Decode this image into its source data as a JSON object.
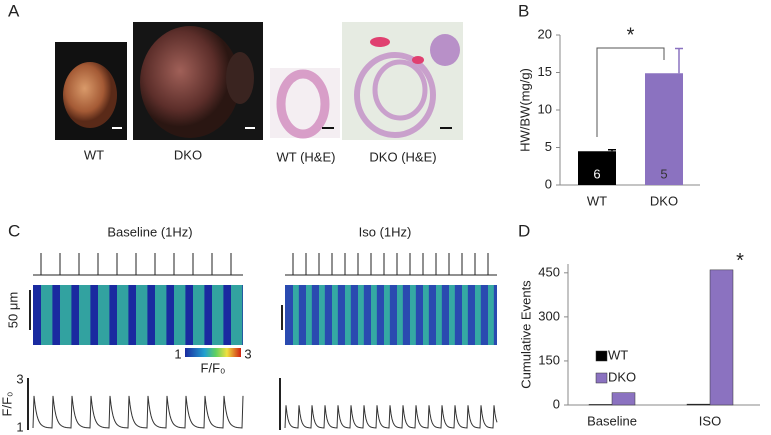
{
  "panels": {
    "labels": [
      "A",
      "B",
      "C",
      "D"
    ],
    "a_captions": [
      "WT",
      "DKO",
      "WT (H&E)",
      "DKO (H&E)"
    ],
    "c_titles": [
      "Baseline (1Hz)",
      "Iso (1Hz)"
    ],
    "c_scale": "50 μm",
    "c_colorbar": [
      "1",
      "3",
      "F/F₀"
    ],
    "c_trace_axis": {
      "label": "F/F₀",
      "ticks": [
        "3",
        "1"
      ]
    }
  },
  "chart_data": [
    {
      "type": "bar",
      "categories": [
        "WT",
        "DKO"
      ],
      "values": [
        4.5,
        14.9
      ],
      "errors": [
        0.2,
        3.3
      ],
      "colors": [
        "#000000",
        "#8b72c0"
      ],
      "ylabel": "HW/BW(mg/g)",
      "ylim": [
        0,
        20
      ],
      "yticks": [
        0,
        5,
        10,
        15,
        20
      ],
      "annotations": [
        "6",
        "5"
      ],
      "significance": "*"
    },
    {
      "type": "bar",
      "categories": [
        "Baseline",
        "ISO"
      ],
      "series": [
        {
          "name": "WT",
          "color": "#000000",
          "values": [
            2,
            3
          ]
        },
        {
          "name": "DKO",
          "color": "#8b72c0",
          "values": [
            42,
            460
          ]
        }
      ],
      "ylabel": "Cumulative Events",
      "ylim": [
        0,
        480
      ],
      "yticks": [
        0,
        150,
        300,
        450
      ],
      "significance": "*"
    }
  ]
}
